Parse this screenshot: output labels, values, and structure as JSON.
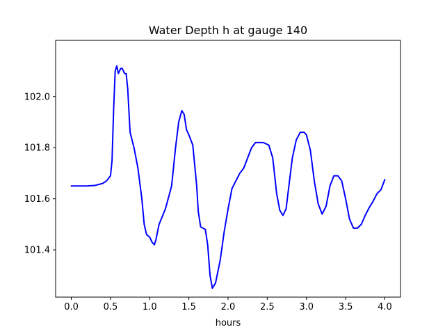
{
  "chart_data": {
    "type": "line",
    "title": "Water Depth h at gauge 140",
    "xlabel": "hours",
    "ylabel": "",
    "xlim": [
      -0.2,
      4.2
    ],
    "ylim": [
      101.215,
      102.22
    ],
    "xticks": [
      0.0,
      0.5,
      1.0,
      1.5,
      2.0,
      2.5,
      3.0,
      3.5,
      4.0
    ],
    "xtick_labels": [
      "0.0",
      "0.5",
      "1.0",
      "1.5",
      "2.0",
      "2.5",
      "3.0",
      "3.5",
      "4.0"
    ],
    "yticks": [
      101.4,
      101.6,
      101.8,
      102.0
    ],
    "ytick_labels": [
      "101.4",
      "101.6",
      "101.8",
      "102.0"
    ],
    "grid": false,
    "series": [
      {
        "color": "#0000ff",
        "points": [
          [
            0.0,
            101.65
          ],
          [
            0.2,
            101.65
          ],
          [
            0.3,
            101.652
          ],
          [
            0.4,
            101.66
          ],
          [
            0.45,
            101.67
          ],
          [
            0.5,
            101.69
          ],
          [
            0.52,
            101.75
          ],
          [
            0.54,
            101.95
          ],
          [
            0.56,
            102.1
          ],
          [
            0.58,
            102.12
          ],
          [
            0.6,
            102.09
          ],
          [
            0.63,
            102.11
          ],
          [
            0.65,
            102.11
          ],
          [
            0.68,
            102.09
          ],
          [
            0.7,
            102.09
          ],
          [
            0.72,
            102.03
          ],
          [
            0.75,
            101.86
          ],
          [
            0.8,
            101.8
          ],
          [
            0.85,
            101.72
          ],
          [
            0.9,
            101.6
          ],
          [
            0.93,
            101.5
          ],
          [
            0.96,
            101.46
          ],
          [
            1.0,
            101.45
          ],
          [
            1.03,
            101.43
          ],
          [
            1.06,
            101.42
          ],
          [
            1.08,
            101.44
          ],
          [
            1.12,
            101.5
          ],
          [
            1.2,
            101.56
          ],
          [
            1.28,
            101.65
          ],
          [
            1.33,
            101.8
          ],
          [
            1.37,
            101.9
          ],
          [
            1.41,
            101.945
          ],
          [
            1.44,
            101.93
          ],
          [
            1.47,
            101.87
          ],
          [
            1.5,
            101.85
          ],
          [
            1.55,
            101.81
          ],
          [
            1.6,
            101.65
          ],
          [
            1.62,
            101.55
          ],
          [
            1.65,
            101.49
          ],
          [
            1.68,
            101.485
          ],
          [
            1.71,
            101.48
          ],
          [
            1.74,
            101.42
          ],
          [
            1.77,
            101.3
          ],
          [
            1.8,
            101.25
          ],
          [
            1.84,
            101.27
          ],
          [
            1.9,
            101.36
          ],
          [
            1.95,
            101.47
          ],
          [
            2.0,
            101.56
          ],
          [
            2.05,
            101.64
          ],
          [
            2.1,
            101.67
          ],
          [
            2.15,
            101.7
          ],
          [
            2.2,
            101.72
          ],
          [
            2.25,
            101.76
          ],
          [
            2.3,
            101.8
          ],
          [
            2.35,
            101.82
          ],
          [
            2.4,
            101.82
          ],
          [
            2.45,
            101.82
          ],
          [
            2.52,
            101.81
          ],
          [
            2.57,
            101.76
          ],
          [
            2.62,
            101.62
          ],
          [
            2.66,
            101.555
          ],
          [
            2.7,
            101.535
          ],
          [
            2.74,
            101.56
          ],
          [
            2.78,
            101.66
          ],
          [
            2.82,
            101.76
          ],
          [
            2.87,
            101.83
          ],
          [
            2.92,
            101.86
          ],
          [
            2.97,
            101.86
          ],
          [
            3.0,
            101.85
          ],
          [
            3.05,
            101.79
          ],
          [
            3.1,
            101.67
          ],
          [
            3.15,
            101.58
          ],
          [
            3.2,
            101.54
          ],
          [
            3.25,
            101.57
          ],
          [
            3.3,
            101.65
          ],
          [
            3.35,
            101.69
          ],
          [
            3.4,
            101.69
          ],
          [
            3.45,
            101.67
          ],
          [
            3.5,
            101.6
          ],
          [
            3.55,
            101.52
          ],
          [
            3.6,
            101.485
          ],
          [
            3.65,
            101.485
          ],
          [
            3.7,
            101.5
          ],
          [
            3.75,
            101.535
          ],
          [
            3.8,
            101.565
          ],
          [
            3.85,
            101.59
          ],
          [
            3.9,
            101.62
          ],
          [
            3.95,
            101.635
          ],
          [
            4.0,
            101.675
          ]
        ]
      }
    ]
  }
}
